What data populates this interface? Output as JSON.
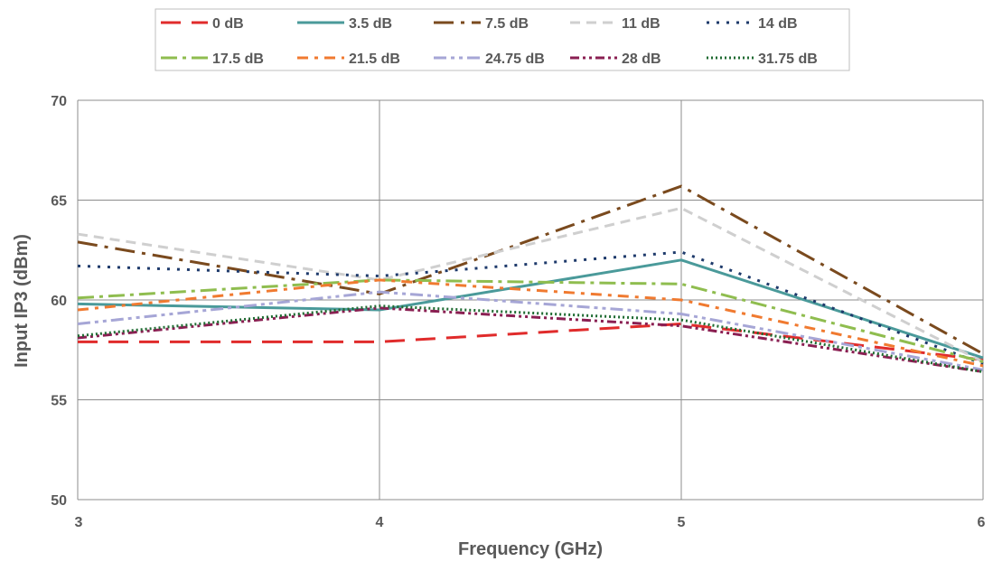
{
  "chart_data": {
    "type": "line",
    "xlabel": "Frequency (GHz)",
    "ylabel": "Input IP3 (dBm)",
    "x": [
      3,
      4,
      5,
      6
    ],
    "xlim": [
      3,
      6
    ],
    "ylim": [
      50,
      70
    ],
    "xticks": [
      "3",
      "4",
      "5",
      "6"
    ],
    "yticks": [
      "50",
      "55",
      "60",
      "65",
      "70"
    ],
    "grid": true,
    "legend_position": "top",
    "series": [
      {
        "name": "0 dB",
        "values": [
          57.9,
          57.9,
          58.8,
          57.0
        ],
        "color": "#e02b2b",
        "dash": "22,12",
        "width": 3
      },
      {
        "name": "3.5 dB",
        "values": [
          59.8,
          59.5,
          62.0,
          57.1
        ],
        "color": "#4a9a9a",
        "dash": "",
        "width": 3
      },
      {
        "name": "7.5 dB",
        "values": [
          62.9,
          60.3,
          65.7,
          57.3
        ],
        "color": "#7a4a1e",
        "dash": "22,8,4,8",
        "width": 3
      },
      {
        "name": "11 dB",
        "values": [
          63.3,
          61.0,
          64.6,
          56.9
        ],
        "color": "#cfcfcf",
        "dash": "11,7",
        "width": 3
      },
      {
        "name": "14 dB",
        "values": [
          61.7,
          61.2,
          62.4,
          56.8
        ],
        "color": "#1e3a6b",
        "dash": "3,8",
        "width": 3
      },
      {
        "name": "17.5 dB",
        "values": [
          60.1,
          61.0,
          60.8,
          56.9
        ],
        "color": "#8fbd4f",
        "dash": "18,6,4,6",
        "width": 3
      },
      {
        "name": "21.5 dB",
        "values": [
          59.5,
          61.0,
          60.0,
          56.7
        ],
        "color": "#f07a30",
        "dash": "12,7,4,7",
        "width": 3
      },
      {
        "name": "24.75 dB",
        "values": [
          58.8,
          60.4,
          59.3,
          56.5
        ],
        "color": "#a6a6d6",
        "dash": "14,5,4,5,4,5",
        "width": 3
      },
      {
        "name": "28 dB",
        "values": [
          58.1,
          59.6,
          58.7,
          56.4
        ],
        "color": "#8a1f52",
        "dash": "10,4,3,4,3,4",
        "width": 3
      },
      {
        "name": "31.75 dB",
        "values": [
          58.2,
          59.7,
          59.0,
          56.4
        ],
        "color": "#1f6b32",
        "dash": "2,3",
        "width": 3
      }
    ]
  }
}
